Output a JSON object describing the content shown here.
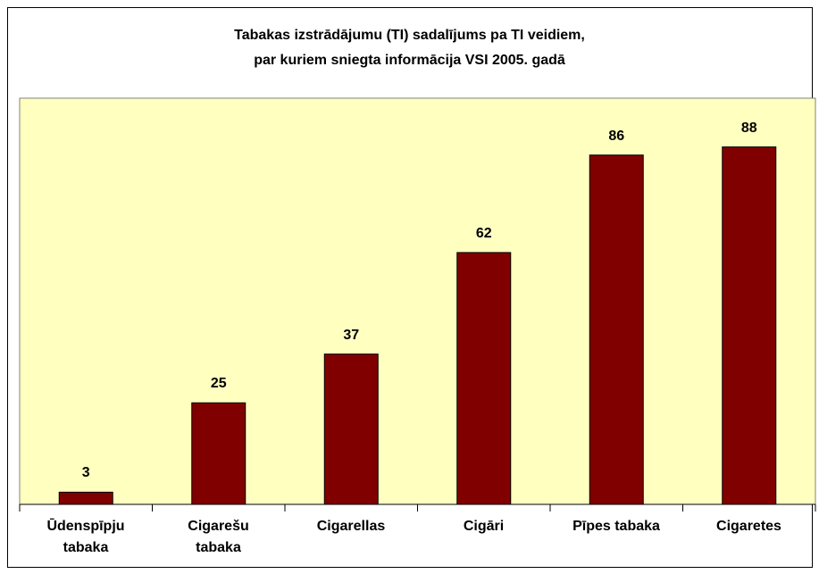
{
  "chart_data": {
    "type": "bar",
    "title": "Tabakas izstrādājumu (TI) sadalījums pa TI veidiem,\npar kuriem sniegta informācija VSI 2005. gadā",
    "categories": [
      "Ūdenspīpju\ntabaka",
      "Cigarešu\ntabaka",
      "Cigarellas",
      "Cigāri",
      "Pīpes tabaka",
      "Cigaretes"
    ],
    "values": [
      3,
      25,
      37,
      62,
      86,
      88
    ],
    "color": "#800000",
    "background": "#ffffc0",
    "ylim": [
      0,
      100
    ]
  }
}
